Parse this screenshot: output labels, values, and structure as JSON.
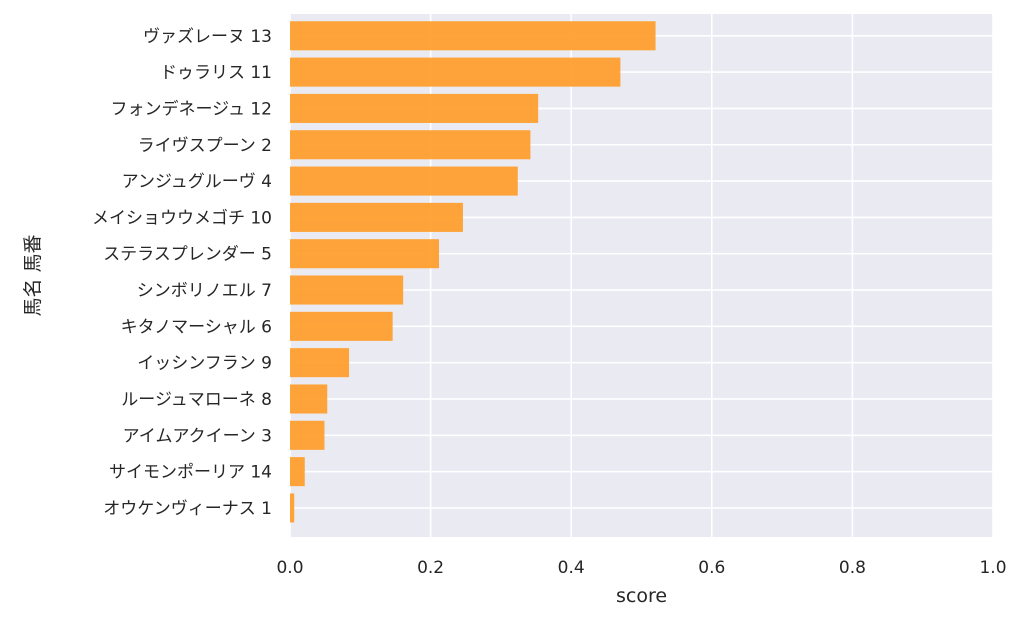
{
  "chart_data": {
    "type": "bar",
    "orientation": "horizontal",
    "xlabel": "score",
    "ylabel": "馬名 馬番",
    "xlim": [
      0,
      1.0
    ],
    "xticks": [
      "0.0",
      "0.2",
      "0.4",
      "0.6",
      "0.8",
      "1.0"
    ],
    "grid": true,
    "bar_color": "#ff9f2e",
    "background_color": "#eaeaf2",
    "categories": [
      "ヴァズレーヌ 13",
      "ドゥラリス 11",
      "フォンデネージュ 12",
      "ライヴスプーン 2",
      "アンジュグルーヴ 4",
      "メイショウウメゴチ 10",
      "ステラスプレンダー 5",
      "シンボリノエル 7",
      "キタノマーシャル 6",
      "イッシンフラン 9",
      "ルージュマローネ 8",
      "アイムアクイーン 3",
      "サイモンポーリア 14",
      "オウケンヴィーナス 1"
    ],
    "values": [
      0.52,
      0.47,
      0.353,
      0.342,
      0.324,
      0.246,
      0.212,
      0.161,
      0.146,
      0.084,
      0.053,
      0.049,
      0.021,
      0.006
    ]
  }
}
